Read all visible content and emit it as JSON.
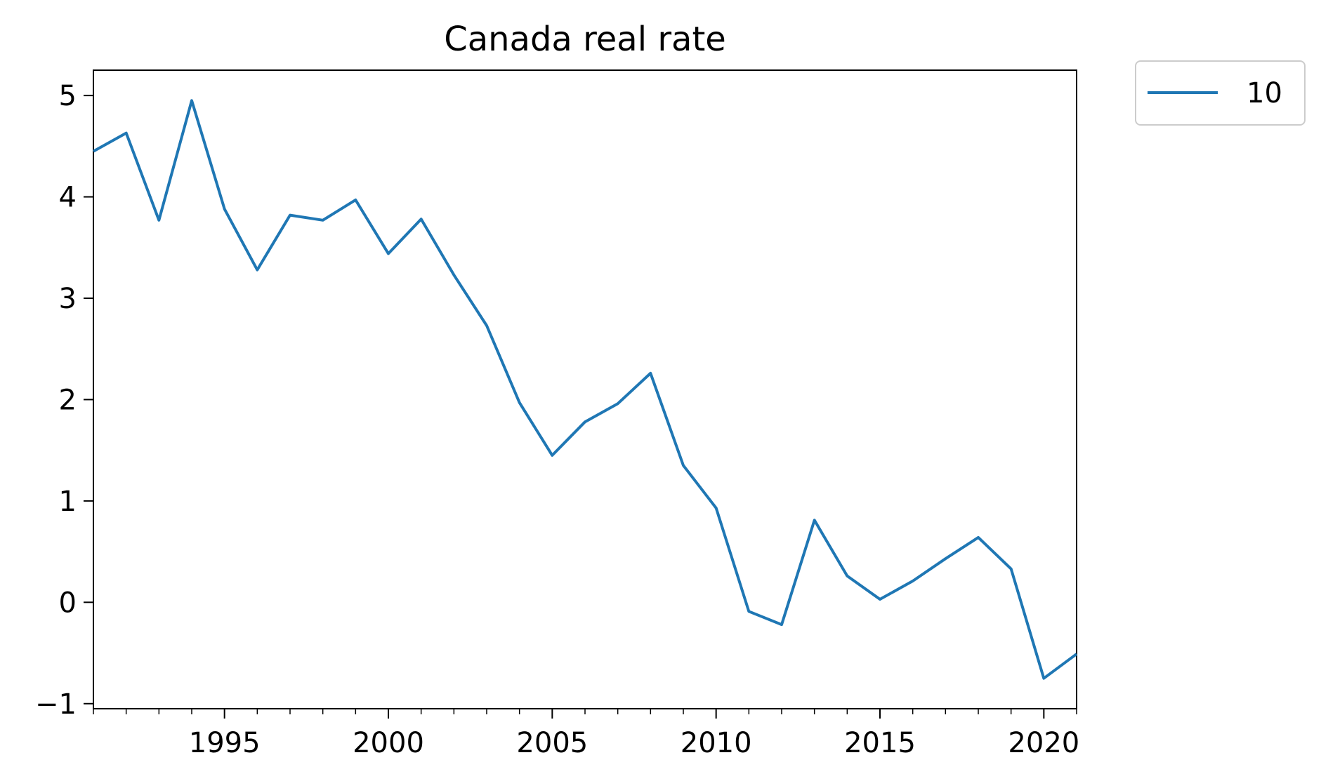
{
  "chart_data": {
    "type": "line",
    "title": "Canada real rate",
    "xlabel": "",
    "ylabel": "",
    "xlim": [
      1991,
      2021
    ],
    "ylim": [
      -1.05,
      5.25
    ],
    "x_ticks": [
      1995,
      2000,
      2005,
      2010,
      2015,
      2020
    ],
    "x_tick_labels": [
      "1995",
      "2000",
      "2005",
      "2010",
      "2015",
      "2020"
    ],
    "y_ticks": [
      -1,
      0,
      1,
      2,
      3,
      4,
      5
    ],
    "y_tick_labels": [
      "−1",
      "0",
      "1",
      "2",
      "3",
      "4",
      "5"
    ],
    "grid": false,
    "legend_position": "outside top-right",
    "series": [
      {
        "name": "10",
        "color": "#1f77b4",
        "x": [
          1991,
          1992,
          1993,
          1994,
          1995,
          1996,
          1997,
          1998,
          1999,
          2000,
          2001,
          2002,
          2003,
          2004,
          2005,
          2006,
          2007,
          2008,
          2009,
          2010,
          2011,
          2012,
          2013,
          2014,
          2015,
          2016,
          2017,
          2018,
          2019,
          2020,
          2021
        ],
        "values": [
          4.45,
          4.63,
          3.77,
          4.95,
          3.88,
          3.28,
          3.82,
          3.77,
          3.97,
          3.44,
          3.78,
          3.23,
          2.73,
          1.97,
          1.45,
          1.78,
          1.96,
          2.26,
          1.35,
          0.93,
          -0.09,
          -0.22,
          0.81,
          0.26,
          0.03,
          0.21,
          0.43,
          0.64,
          0.33,
          -0.75,
          -0.51
        ]
      }
    ]
  }
}
